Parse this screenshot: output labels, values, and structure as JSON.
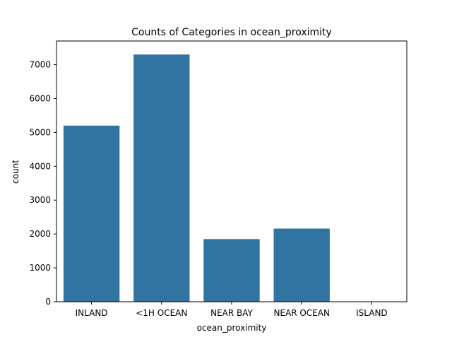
{
  "chart_data": {
    "type": "bar",
    "title": "Counts of Categories in ocean_proximity",
    "xlabel": "ocean_proximity",
    "ylabel": "count",
    "categories": [
      "INLAND",
      "<1H OCEAN",
      "NEAR BAY",
      "NEAR OCEAN",
      "ISLAND"
    ],
    "values": [
      5200,
      7300,
      1850,
      2160,
      5
    ],
    "ylim": [
      0,
      7700
    ],
    "yticks": [
      0,
      1000,
      2000,
      3000,
      4000,
      5000,
      6000,
      7000
    ],
    "grid": false,
    "bar_color": "#3274a1"
  }
}
